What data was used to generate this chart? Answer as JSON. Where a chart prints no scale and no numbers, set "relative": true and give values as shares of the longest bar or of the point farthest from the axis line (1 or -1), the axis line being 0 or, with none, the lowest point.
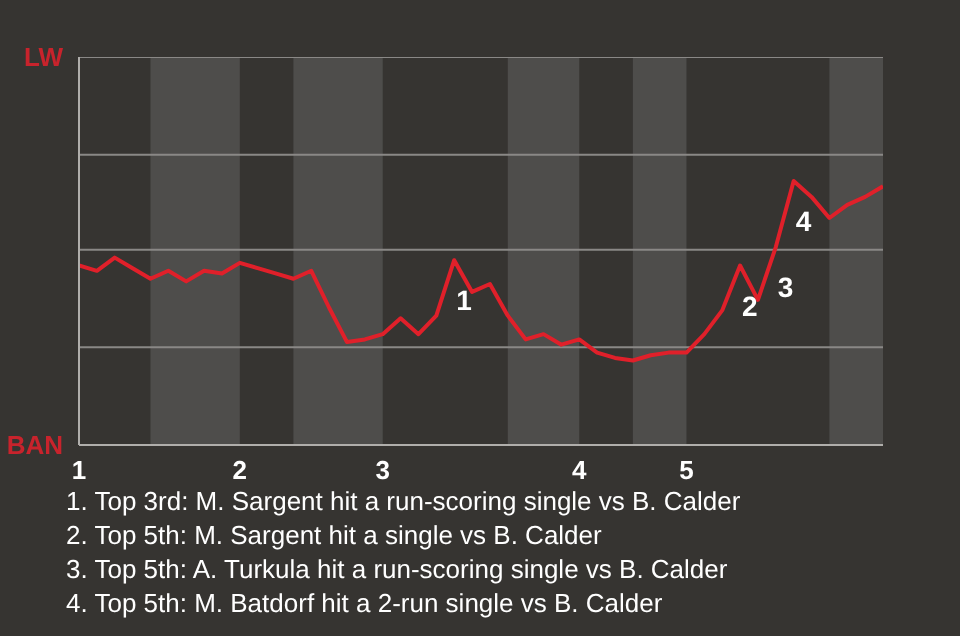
{
  "chart_data": {
    "type": "line",
    "relative": true,
    "categories": [
      "1",
      null,
      null,
      null,
      null,
      null,
      null,
      null,
      null,
      "2",
      null,
      null,
      null,
      null,
      null,
      null,
      null,
      "3",
      null,
      null,
      null,
      null,
      null,
      null,
      null,
      null,
      null,
      null,
      "4",
      null,
      null,
      null,
      null,
      null,
      "5",
      null,
      null,
      null,
      null,
      null,
      null,
      null,
      null,
      null,
      null,
      null
    ],
    "series": [
      {
        "color": "#e0202a",
        "values": [
          0.68,
          0.66,
          0.71,
          0.67,
          0.63,
          0.66,
          0.62,
          0.66,
          0.65,
          0.69,
          0.67,
          0.65,
          0.63,
          0.66,
          0.52,
          0.39,
          0.4,
          0.42,
          0.48,
          0.42,
          0.49,
          0.7,
          0.58,
          0.61,
          0.49,
          0.4,
          0.42,
          0.38,
          0.4,
          0.35,
          0.33,
          0.32,
          0.34,
          0.35,
          0.35,
          0.42,
          0.51,
          0.68,
          0.55,
          0.75,
          1,
          0.94,
          0.86,
          0.91,
          0.94,
          0.98
        ]
      }
    ],
    "marker": "none",
    "line_style": "solid",
    "ref_lines": [
      {
        "axis": "y",
        "value": 0.37,
        "color": "#8a8886"
      },
      {
        "axis": "y",
        "value": 0.74,
        "color": "#8a8886"
      },
      {
        "axis": "y",
        "value": 1.1,
        "color": "#8a8886"
      },
      {
        "axis": "y",
        "value": 1.47,
        "color": "#8a8886"
      }
    ],
    "annotations": [
      "LW",
      "BAN",
      {
        "text": "1",
        "y": 0.7
      },
      {
        "text": "2",
        "y": 0.68
      },
      {
        "text": "3",
        "y": 0.75
      },
      {
        "text": "4",
        "y": 1
      },
      "1. Top 3rd: M. Sargent hit a run-scoring single vs B. Calder",
      "2. Top 5th: M. Sargent hit a single vs B. Calder",
      "3. Top 5th: A. Turkula hit a run-scoring single vs B. Calder",
      "4. Top 5th: M. Batdorf hit a 2-run single vs B. Calder"
    ]
  }
}
